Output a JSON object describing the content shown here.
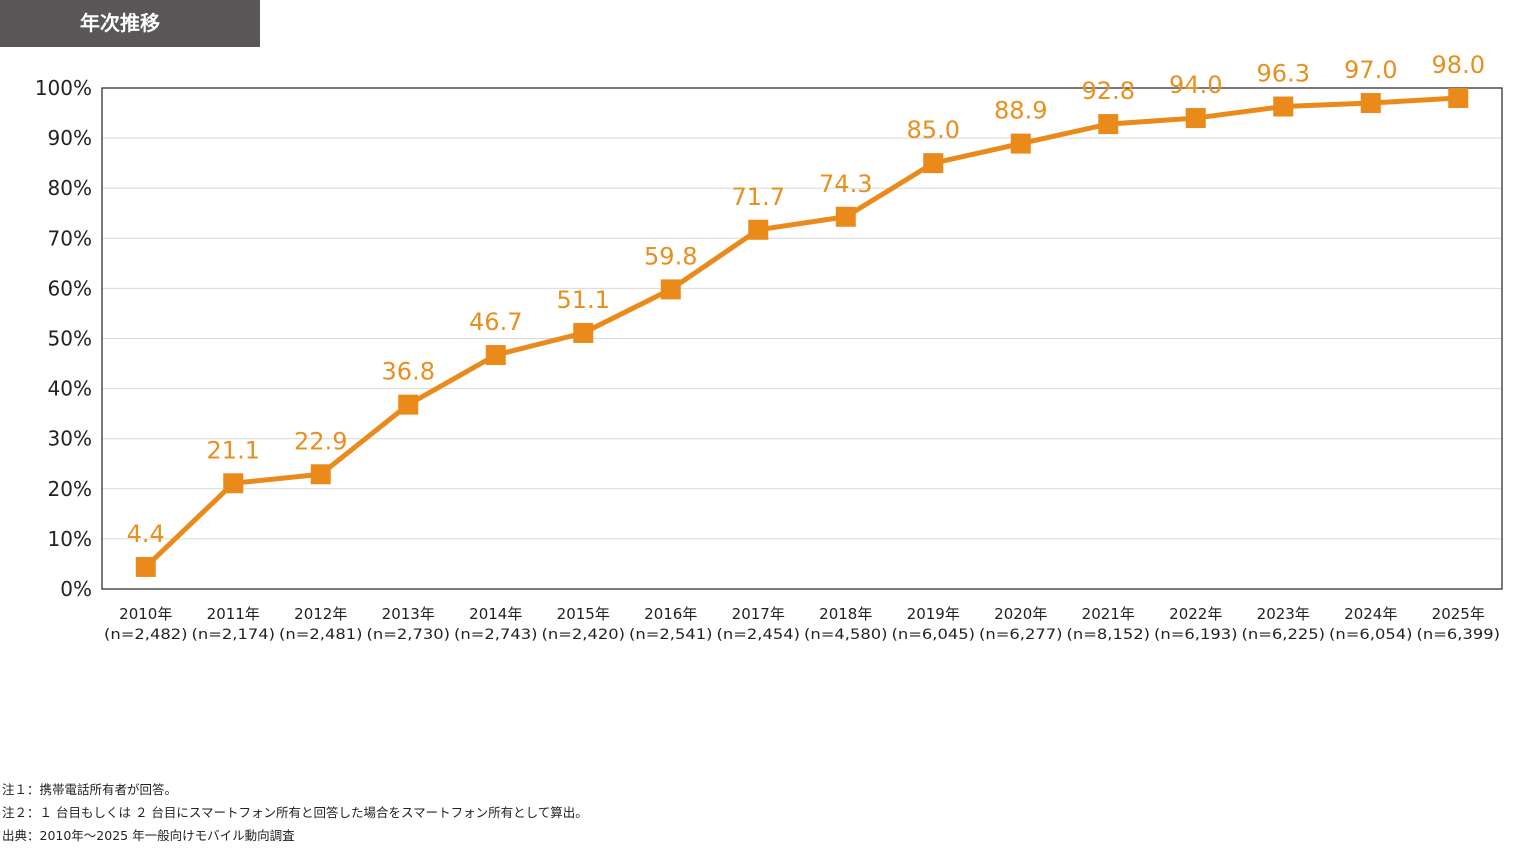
{
  "header": {
    "title": "年次推移"
  },
  "notes": [
    "注１：携帯電話所有者が回答。",
    "注２：１ 台目もしくは ２ 台目にスマートフォン所有と回答した場合をスマートフォン所有として算出。",
    "出典：2010年〜2025 年一般向けモバイル動向調査"
  ],
  "chart_data": {
    "type": "line",
    "title": "",
    "xlabel": "",
    "ylabel": "",
    "ylim": [
      0,
      100
    ],
    "yticks": [
      "0%",
      "10%",
      "20%",
      "30%",
      "40%",
      "50%",
      "60%",
      "70%",
      "80%",
      "90%",
      "100%"
    ],
    "grid": true,
    "categories": [
      {
        "year": "2010年",
        "n": "(n=2,482)"
      },
      {
        "year": "2011年",
        "n": "(n=2,174)"
      },
      {
        "year": "2012年",
        "n": "(n=2,481)"
      },
      {
        "year": "2013年",
        "n": "(n=2,730)"
      },
      {
        "year": "2014年",
        "n": "(n=2,743)"
      },
      {
        "year": "2015年",
        "n": "(n=2,420)"
      },
      {
        "year": "2016年",
        "n": "(n=2,541)"
      },
      {
        "year": "2017年",
        "n": "(n=2,454)"
      },
      {
        "year": "2018年",
        "n": "(n=4,580)"
      },
      {
        "year": "2019年",
        "n": "(n=6,045)"
      },
      {
        "year": "2020年",
        "n": "(n=6,277)"
      },
      {
        "year": "2021年",
        "n": "(n=8,152)"
      },
      {
        "year": "2022年",
        "n": "(n=6,193)"
      },
      {
        "year": "2023年",
        "n": "(n=6,225)"
      },
      {
        "year": "2024年",
        "n": "(n=6,054)"
      },
      {
        "year": "2025年",
        "n": "(n=6,399)"
      }
    ],
    "values": [
      4.4,
      21.1,
      22.9,
      36.8,
      46.7,
      51.1,
      59.8,
      71.7,
      74.3,
      85.0,
      88.9,
      92.8,
      94.0,
      96.3,
      97.0,
      98.0
    ],
    "labels": [
      "4.4",
      "21.1",
      "22.9",
      "36.8",
      "46.7",
      "51.1",
      "59.8",
      "71.7",
      "74.3",
      "85.0",
      "88.9",
      "92.8",
      "94.0",
      "96.3",
      "97.0",
      "98.0"
    ],
    "colors": {
      "line": "#ea8a1a",
      "label": "#e8901f",
      "grid": "#d9d9d9",
      "axis": "#222222"
    }
  }
}
